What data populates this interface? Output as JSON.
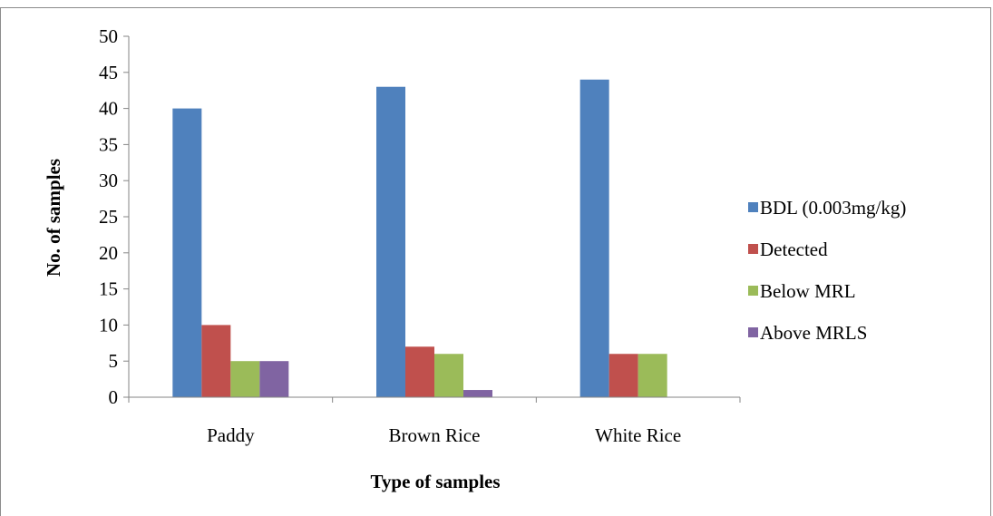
{
  "chart_data": {
    "type": "bar",
    "categories": [
      "Paddy",
      "Brown Rice",
      "White Rice"
    ],
    "series": [
      {
        "name": "BDL (0.003mg/kg)",
        "values": [
          40,
          43,
          44
        ],
        "color": "#4f81bd"
      },
      {
        "name": "Detected",
        "values": [
          10,
          7,
          6
        ],
        "color": "#c0504d"
      },
      {
        "name": "Below MRL",
        "values": [
          5,
          6,
          6
        ],
        "color": "#9bbb59"
      },
      {
        "name": "Above MRLS",
        "values": [
          5,
          1,
          0
        ],
        "color": "#8064a2"
      }
    ],
    "xlabel": "Type of samples",
    "ylabel": "No. of samples",
    "ylim": [
      0,
      50
    ],
    "yticks": [
      0,
      5,
      10,
      15,
      20,
      25,
      30,
      35,
      40,
      45,
      50
    ],
    "grid": false,
    "legend_position": "right"
  }
}
